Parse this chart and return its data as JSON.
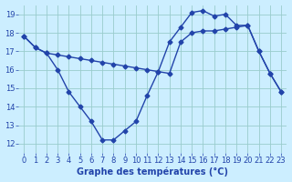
{
  "line1_x": [
    0,
    1,
    2,
    3,
    4,
    5,
    6,
    7,
    8,
    9,
    10,
    11,
    12,
    13,
    14,
    15,
    16,
    17,
    18,
    19,
    20,
    21,
    22,
    23
  ],
  "line1_y": [
    17.8,
    17.2,
    16.9,
    16.8,
    16.7,
    16.6,
    16.5,
    16.4,
    16.3,
    16.2,
    16.1,
    16.0,
    15.9,
    15.8,
    17.5,
    18.0,
    18.1,
    18.1,
    18.2,
    18.3,
    18.4,
    17.0,
    15.8,
    14.8
  ],
  "line2_x": [
    0,
    1,
    2,
    3,
    4,
    5,
    6,
    7,
    8,
    9,
    10,
    11,
    12,
    13,
    14,
    15,
    16,
    17,
    18,
    19,
    20,
    21,
    22,
    23
  ],
  "line2_y": [
    17.8,
    17.2,
    16.9,
    16.0,
    14.8,
    14.0,
    13.2,
    12.2,
    12.2,
    12.7,
    13.2,
    14.6,
    15.9,
    17.5,
    18.3,
    19.1,
    19.2,
    18.9,
    19.0,
    18.4,
    18.4,
    17.0,
    15.8,
    14.8
  ],
  "line_color": "#2244aa",
  "bg_color": "#cceeff",
  "grid_color": "#99cccc",
  "xlabel": "Graphe des températures (°C)",
  "xlim": [
    -0.5,
    23.5
  ],
  "ylim": [
    11.5,
    19.5
  ],
  "yticks": [
    12,
    13,
    14,
    15,
    16,
    17,
    18,
    19
  ],
  "xticks": [
    0,
    1,
    2,
    3,
    4,
    5,
    6,
    7,
    8,
    9,
    10,
    11,
    12,
    13,
    14,
    15,
    16,
    17,
    18,
    19,
    20,
    21,
    22,
    23
  ],
  "xlabel_fontsize": 7,
  "tick_fontsize": 6,
  "marker": "D",
  "marker_size": 2.5,
  "line_width": 1.0
}
